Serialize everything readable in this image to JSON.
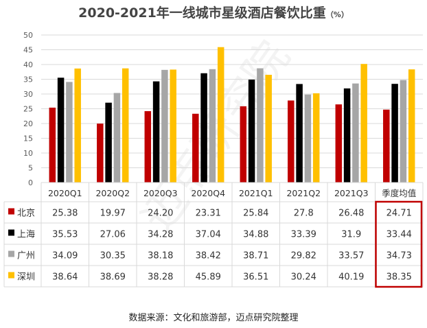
{
  "title": "2020-2021年一线城市星级酒店餐饮比重",
  "title_unit": "（%）",
  "source": "数据来源：文化和旅游部，迈点研究院整理",
  "watermark": "迈点研究院",
  "colors": {
    "北京": "#c00000",
    "上海": "#000000",
    "广州": "#a6a6a6",
    "深圳": "#ffc000",
    "highlight": "#c00000",
    "grid": "#d9d9d9"
  },
  "chart_data": {
    "type": "bar",
    "title": "2020-2021年一线城市星级酒店餐饮比重（%）",
    "categories": [
      "2020Q1",
      "2020Q2",
      "2020Q3",
      "2020Q4",
      "2021Q1",
      "2021Q2",
      "2021Q3",
      "季度均值"
    ],
    "ylim": [
      0,
      50
    ],
    "yticks": [
      0,
      5,
      10,
      15,
      20,
      25,
      30,
      35,
      40,
      45,
      50
    ],
    "grid": true,
    "legend": "table-below",
    "series": [
      {
        "name": "北京",
        "values": [
          25.38,
          19.97,
          24.2,
          23.31,
          25.84,
          27.8,
          26.48,
          24.71
        ],
        "labels": [
          "25.38",
          "19.97",
          "24.20",
          "23.31",
          "25.84",
          "27.8",
          "26.48",
          "24.71"
        ]
      },
      {
        "name": "上海",
        "values": [
          35.53,
          27.06,
          34.28,
          37.04,
          34.88,
          33.39,
          31.9,
          33.44
        ],
        "labels": [
          "35.53",
          "27.06",
          "34.28",
          "37.04",
          "34.88",
          "33.39",
          "31.9",
          "33.44"
        ]
      },
      {
        "name": "广州",
        "values": [
          34.09,
          30.35,
          38.18,
          38.42,
          38.71,
          29.82,
          33.57,
          34.73
        ],
        "labels": [
          "34.09",
          "30.35",
          "38.18",
          "38.42",
          "38.71",
          "29.82",
          "33.57",
          "34.73"
        ]
      },
      {
        "name": "深圳",
        "values": [
          38.64,
          38.69,
          38.28,
          45.89,
          36.51,
          30.24,
          40.19,
          38.35
        ],
        "labels": [
          "38.64",
          "38.69",
          "38.28",
          "45.89",
          "36.51",
          "30.24",
          "40.19",
          "38.35"
        ]
      }
    ],
    "highlight_category": "季度均值"
  }
}
